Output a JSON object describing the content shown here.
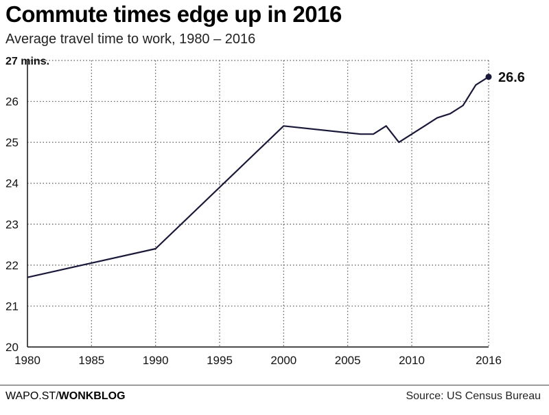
{
  "header": {
    "title": "Commute times edge up in 2016",
    "subtitle": "Average travel time to work, 1980 – 2016"
  },
  "footer": {
    "brand_prefix": "WAPO.ST/",
    "brand_suffix": "WONKBLOG",
    "source": "Source: US Census Bureau"
  },
  "chart_data": {
    "type": "line",
    "title": "Commute times edge up in 2016",
    "subtitle": "Average travel time to work, 1980 – 2016",
    "xlabel": "",
    "ylabel": "",
    "xlim": [
      1980,
      2016
    ],
    "ylim": [
      20,
      27
    ],
    "x_ticks": [
      1980,
      1985,
      1990,
      1995,
      2000,
      2005,
      2010,
      2016
    ],
    "y_ticks": [
      {
        "value": 20,
        "label": "20"
      },
      {
        "value": 21,
        "label": "21"
      },
      {
        "value": 22,
        "label": "22"
      },
      {
        "value": 23,
        "label": "23"
      },
      {
        "value": 24,
        "label": "24"
      },
      {
        "value": 25,
        "label": "25"
      },
      {
        "value": 26,
        "label": "26"
      },
      {
        "value": 27,
        "label": "27 mins."
      }
    ],
    "grid": true,
    "line_color": "#1a1838",
    "series": [
      {
        "x": [
          1980,
          1990,
          2000,
          2006,
          2007,
          2008,
          2009,
          2010,
          2011,
          2012,
          2013,
          2014,
          2015,
          2016
        ],
        "y": [
          21.7,
          22.4,
          25.4,
          25.2,
          25.2,
          25.4,
          25.0,
          25.2,
          25.4,
          25.6,
          25.7,
          25.9,
          26.4,
          26.6
        ]
      }
    ],
    "annotations": [
      {
        "x": 2016,
        "y": 26.6,
        "text": "26.6"
      }
    ]
  }
}
